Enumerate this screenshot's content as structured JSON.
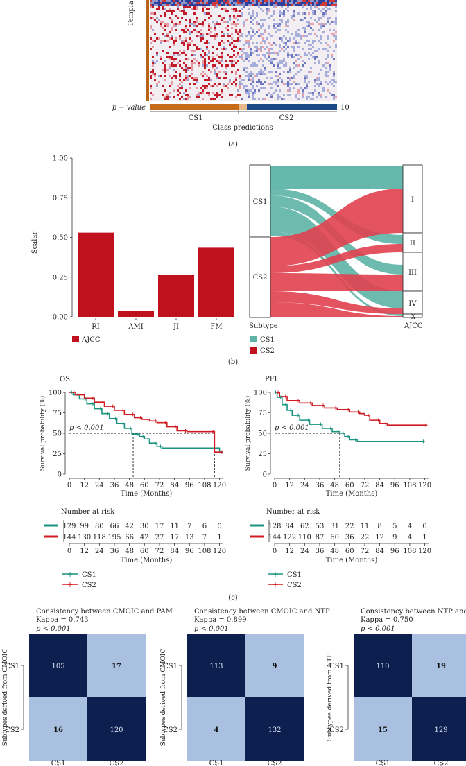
{
  "panel_a": {
    "ylabel": "Templa",
    "pvalue_label": "p − value",
    "pvalue_max": "10",
    "classes": [
      "CS1",
      "CS2"
    ],
    "xlabel": "Class predictions",
    "caption": "(a)"
  },
  "panel_b": {
    "caption": "(b)",
    "bar_chart": {
      "type": "bar",
      "categories": [
        "RI",
        "AMI",
        "JI",
        "FM"
      ],
      "values": [
        0.53,
        0.035,
        0.265,
        0.435
      ],
      "ylabel": "Scalar",
      "yticks": [
        "0.00",
        "0.25",
        "0.50",
        "0.75",
        "1.00"
      ],
      "ylim": [
        0,
        1
      ],
      "legend": "AJCC",
      "color": "#c0111f"
    },
    "sankey": {
      "left_axis": "Subtype",
      "right_axis": "AJCC",
      "left_nodes": [
        "CS1",
        "CS2"
      ],
      "right_nodes": [
        "I",
        "II",
        "III",
        "IV",
        "X"
      ],
      "legend": [
        "CS1",
        "CS2"
      ],
      "colors": {
        "CS1": "#5db4a6",
        "CS2": "#e0414f"
      }
    }
  },
  "panel_c": {
    "caption": "(c)",
    "plots": [
      {
        "title": "OS",
        "pvalue": "p < 0.001",
        "ylabel": "Survival probability (%)",
        "xlabel": "Time (Months)",
        "yticks": [
          "0",
          "25",
          "50",
          "75",
          "100"
        ],
        "xticks": [
          "0",
          "12",
          "24",
          "36",
          "48",
          "60",
          "72",
          "84",
          "96",
          "108",
          "120"
        ],
        "risk_title": "Number at risk",
        "risk_cs1": [
          "129",
          "99",
          "80",
          "66",
          "42",
          "30",
          "17",
          "11",
          "7",
          "6",
          "0"
        ],
        "risk_cs2": [
          "144",
          "130",
          "118",
          "195",
          "66",
          "42",
          "27",
          "17",
          "13",
          "7",
          "1"
        ],
        "legend": [
          "CS1",
          "CS2"
        ]
      },
      {
        "title": "PFI",
        "pvalue": "p < 0.001",
        "ylabel": "Survival probability (%)",
        "xlabel": "Time (Months)",
        "yticks": [
          "0",
          "25",
          "50",
          "75",
          "100"
        ],
        "xticks": [
          "0",
          "12",
          "24",
          "36",
          "48",
          "60",
          "72",
          "84",
          "96",
          "108",
          "120"
        ],
        "risk_title": "Number at risk",
        "risk_cs1": [
          "128",
          "84",
          "62",
          "53",
          "31",
          "22",
          "11",
          "8",
          "5",
          "4",
          "0"
        ],
        "risk_cs2": [
          "144",
          "122",
          "110",
          "87",
          "60",
          "36",
          "22",
          "12",
          "9",
          "4",
          "1"
        ],
        "legend": [
          "CS1",
          "CS2"
        ]
      }
    ],
    "colors": {
      "CS1": "#1a9480",
      "CS2": "#d11b22"
    }
  },
  "panel_d": {
    "matrices": [
      {
        "title": "Consistency between CMOIC and PAM",
        "kappa": "Kappa = 0.743",
        "pvalue": "p < 0.001",
        "ylabel": "Subtypes derived from CMOIC",
        "rows": [
          "CS1",
          "CS2"
        ],
        "cols": [
          "CS1",
          "CS2"
        ],
        "values": [
          [
            "105",
            "17"
          ],
          [
            "16",
            "120"
          ]
        ]
      },
      {
        "title": "Consistency between CMOIC and NTP",
        "kappa": "Kappa = 0.899",
        "pvalue": "p < 0.001",
        "ylabel": "Subtypes derived from CMOIC",
        "rows": [
          "CS1",
          "CS2"
        ],
        "cols": [
          "CS1",
          "CS2"
        ],
        "values": [
          [
            "113",
            "9"
          ],
          [
            "4",
            "132"
          ]
        ]
      },
      {
        "title": "Consistency between NTP and PAM",
        "kappa": "Kappa = 0.750",
        "pvalue": "p < 0.001",
        "ylabel": "Subtypes derived from NTP",
        "rows": [
          "CS1",
          "CS2"
        ],
        "cols": [
          "CS1",
          "CS2"
        ],
        "values": [
          [
            "110",
            "19"
          ],
          [
            "15",
            "129"
          ]
        ]
      }
    ],
    "colors": {
      "dark": "#0c1f4e",
      "light": "#a9c0e0"
    }
  }
}
